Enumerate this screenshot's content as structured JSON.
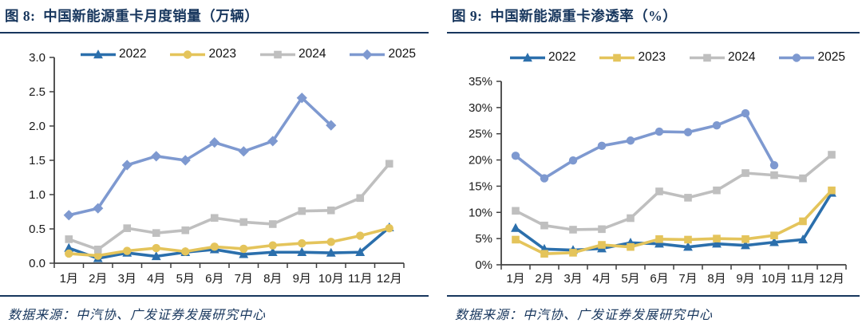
{
  "colors": {
    "title_navy": "#17365D",
    "axis": "#404040",
    "label": "#1a1a1a",
    "series_2022": "#2B6FAC",
    "series_2023": "#E4C45B",
    "series_2024": "#BFBFBF",
    "series_2025": "#7E99D0"
  },
  "chart_data": [
    {
      "type": "line",
      "figure_title": "图 8:  中国新能源重卡月度销量（万辆）",
      "source": "数据来源：中汽协、广发证券发展研究中心",
      "categories": [
        "1月",
        "2月",
        "3月",
        "4月",
        "5月",
        "6月",
        "7月",
        "8月",
        "9月",
        "10月",
        "11月",
        "12月"
      ],
      "ylim": [
        0,
        3
      ],
      "ytick_values": [
        0,
        0.5,
        1,
        1.5,
        2,
        2.5,
        3
      ],
      "ytick_labels": [
        "0.0",
        "0.5",
        "1.0",
        "1.5",
        "2.0",
        "2.5",
        "3.0"
      ],
      "grid": false,
      "legend_position": "top",
      "series": [
        {
          "name": "2022",
          "color": "#2B6FAC",
          "marker": "triangle",
          "values": [
            0.22,
            0.07,
            0.15,
            0.1,
            0.16,
            0.2,
            0.13,
            0.16,
            0.16,
            0.15,
            0.16,
            0.52
          ]
        },
        {
          "name": "2023",
          "color": "#E4C45B",
          "marker": "circle",
          "values": [
            0.14,
            0.11,
            0.18,
            0.22,
            0.17,
            0.24,
            0.21,
            0.26,
            0.29,
            0.31,
            0.4,
            0.51
          ]
        },
        {
          "name": "2024",
          "color": "#BFBFBF",
          "marker": "square",
          "values": [
            0.35,
            0.2,
            0.51,
            0.44,
            0.48,
            0.66,
            0.6,
            0.57,
            0.76,
            0.77,
            0.95,
            1.45
          ]
        },
        {
          "name": "2025",
          "color": "#7E99D0",
          "marker": "diamond",
          "values": [
            0.7,
            0.8,
            1.43,
            1.56,
            1.5,
            1.76,
            1.63,
            1.78,
            2.41,
            2.01
          ]
        }
      ]
    },
    {
      "type": "line",
      "figure_title": "图 9:  中国新能源重卡渗透率（%）",
      "source": "数据来源：中汽协、广发证券发展研究中心",
      "categories": [
        "1月",
        "2月",
        "3月",
        "4月",
        "5月",
        "6月",
        "7月",
        "8月",
        "9月",
        "10月",
        "11月",
        "12月"
      ],
      "ylim": [
        0,
        35
      ],
      "ytick_values": [
        0,
        5,
        10,
        15,
        20,
        25,
        30,
        35
      ],
      "ytick_labels": [
        "0%",
        "5%",
        "10%",
        "15%",
        "20%",
        "25%",
        "30%",
        "35%"
      ],
      "grid": false,
      "legend_position": "top",
      "series": [
        {
          "name": "2022",
          "color": "#2B6FAC",
          "marker": "triangle",
          "values": [
            7.0,
            3.0,
            2.8,
            3.1,
            4.2,
            4.0,
            3.4,
            4.0,
            3.7,
            4.3,
            4.8,
            13.7
          ]
        },
        {
          "name": "2023",
          "color": "#E4C45B",
          "marker": "square",
          "values": [
            4.8,
            2.1,
            2.3,
            3.8,
            3.4,
            4.9,
            4.8,
            5.0,
            4.9,
            5.6,
            8.3,
            14.2
          ]
        },
        {
          "name": "2024",
          "color": "#BFBFBF",
          "marker": "square",
          "values": [
            10.3,
            7.5,
            6.7,
            6.8,
            8.9,
            14.0,
            12.8,
            14.2,
            17.5,
            17.1,
            16.5,
            21.0
          ]
        },
        {
          "name": "2025",
          "color": "#7E99D0",
          "marker": "circle",
          "values": [
            20.8,
            16.5,
            19.9,
            22.7,
            23.7,
            25.4,
            25.3,
            26.6,
            28.9,
            19.0
          ]
        }
      ]
    }
  ]
}
